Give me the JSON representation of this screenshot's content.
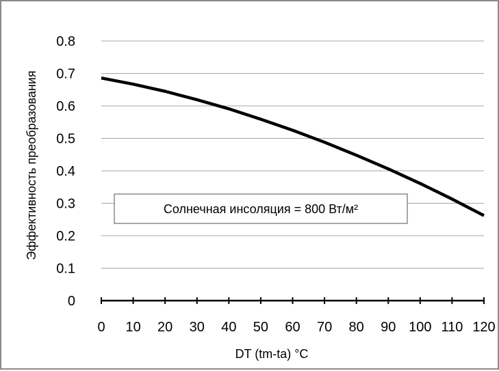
{
  "chart_data": {
    "type": "line",
    "title": "",
    "xlabel": "DT (tm-ta)  °C",
    "ylabel": "Эффективность преобразования",
    "xlim": [
      0,
      120
    ],
    "ylim": [
      0,
      0.8
    ],
    "x_ticks": [
      "0",
      "10",
      "20",
      "30",
      "40",
      "50",
      "60",
      "70",
      "80",
      "90",
      "100",
      "110",
      "120"
    ],
    "y_ticks": [
      "0",
      "0.1",
      "0.2",
      "0.3",
      "0.4",
      "0.5",
      "0.6",
      "0.7",
      "0.8"
    ],
    "grid": "horizontal",
    "annotation": "Солнечная инсоляция = 800 Вт/м²",
    "series": [
      {
        "color": "#000000",
        "x": [
          0,
          10,
          20,
          30,
          40,
          50,
          60,
          70,
          80,
          90,
          100,
          110,
          120
        ],
        "y": [
          0.686,
          0.667,
          0.645,
          0.619,
          0.591,
          0.559,
          0.525,
          0.488,
          0.448,
          0.406,
          0.361,
          0.313,
          0.262
        ]
      }
    ]
  }
}
